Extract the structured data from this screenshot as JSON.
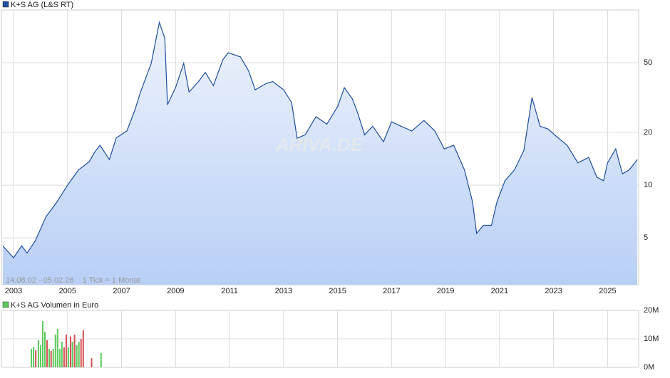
{
  "chart_data": [
    {
      "type": "line",
      "legend": "K+S AG (L&S RT)",
      "note": "14.08.02 - 05.02.26    1 Tick = 1 Monat",
      "watermark": "ARIVA.DE",
      "log_scale": true,
      "grid": true,
      "color": "#1f4e9c",
      "xlim": [
        2002.55,
        2026.15
      ],
      "xticks": [
        2003,
        2005,
        2007,
        2009,
        2011,
        2013,
        2015,
        2017,
        2019,
        2021,
        2023,
        2025
      ],
      "ylim": [
        2.7,
        100
      ],
      "yticks": [
        5,
        10,
        20,
        50
      ],
      "x": [
        2002.6,
        2003.0,
        2003.3,
        2003.5,
        2003.8,
        2004.2,
        2004.6,
        2005.0,
        2005.4,
        2005.8,
        2006.0,
        2006.2,
        2006.55,
        2006.8,
        2007.2,
        2007.5,
        2007.7,
        2008.1,
        2008.4,
        2008.6,
        2008.7,
        2009.0,
        2009.3,
        2009.5,
        2009.85,
        2010.1,
        2010.4,
        2010.75,
        2010.95,
        2011.4,
        2011.7,
        2011.95,
        2012.35,
        2012.6,
        2013.0,
        2013.3,
        2013.5,
        2013.8,
        2014.2,
        2014.6,
        2015.0,
        2015.25,
        2015.55,
        2015.75,
        2016.0,
        2016.3,
        2016.7,
        2017.0,
        2017.35,
        2017.75,
        2018.2,
        2018.6,
        2018.95,
        2019.3,
        2019.7,
        2020.0,
        2020.15,
        2020.4,
        2020.7,
        2020.9,
        2021.2,
        2021.55,
        2021.9,
        2022.2,
        2022.5,
        2022.8,
        2023.1,
        2023.5,
        2023.9,
        2024.3,
        2024.6,
        2024.85,
        2025.0,
        2025.3,
        2025.55,
        2025.8,
        2026.1
      ],
      "series": [
        {
          "name": "K+S AG (L&S RT)",
          "color": "#1f4e9c",
          "values": [
            4.5,
            3.85,
            4.5,
            4.1,
            4.8,
            6.6,
            8.0,
            10,
            12.2,
            13.6,
            15.4,
            16.9,
            14,
            18.6,
            20.4,
            27,
            34,
            49.6,
            85,
            69,
            28.8,
            36,
            49.6,
            34,
            39,
            44,
            37,
            52,
            57,
            54,
            45,
            35,
            38,
            39,
            35,
            29.6,
            18.5,
            19.4,
            24.6,
            22.3,
            28,
            36,
            31,
            25.7,
            19.4,
            21.7,
            17.7,
            23,
            21.7,
            20.4,
            23.4,
            20.4,
            16.1,
            16.9,
            12.2,
            8.0,
            5.3,
            5.9,
            5.9,
            8.0,
            10.6,
            12.2,
            15.8,
            31.6,
            21.7,
            20.9,
            19,
            16.9,
            13.4,
            14.4,
            11.1,
            10.6,
            13.4,
            16.1,
            11.6,
            12.2,
            14
          ]
        }
      ]
    },
    {
      "type": "bar",
      "legend": "K+S AG Volumen in Euro",
      "grid": true,
      "color": "#5cc85c",
      "xlim": [
        2002.55,
        2026.15
      ],
      "ylim": [
        0,
        20000000
      ],
      "yticks": [
        {
          "value": 0,
          "label": "0M"
        },
        {
          "value": 10000000,
          "label": "10M"
        },
        {
          "value": 20000000,
          "label": "20M"
        }
      ],
      "x": [
        2003.66,
        2003.74,
        2003.82,
        2003.92,
        2004.0,
        2004.08,
        2004.16,
        2004.24,
        2004.32,
        2004.39,
        2004.47,
        2004.55,
        2004.63,
        2004.71,
        2004.79,
        2004.87,
        2004.95,
        2005.03,
        2005.11,
        2005.18,
        2005.26,
        2005.34,
        2005.42,
        2005.5,
        2005.58,
        2005.89,
        2006.24
      ],
      "values": [
        6500000,
        7200000,
        6000000,
        9500000,
        7800000,
        16200000,
        12500000,
        9500000,
        6500000,
        5800000,
        6500000,
        11500000,
        13500000,
        6500000,
        9000000,
        7000000,
        11500000,
        7000000,
        10800000,
        9000000,
        11500000,
        7800000,
        9000000,
        10000000,
        13000000,
        3200000,
        5000000
      ],
      "colors": [
        "#5cc85c",
        "#5cc85c",
        "#d05050",
        "#5cc85c",
        "#5cc85c",
        "#5cc85c",
        "#5cc85c",
        "#d05050",
        "#5cc85c",
        "#d05050",
        "#5cc85c",
        "#5cc85c",
        "#5cc85c",
        "#5cc85c",
        "#5cc85c",
        "#d05050",
        "#d05050",
        "#5cc85c",
        "#d05050",
        "#5cc85c",
        "#d05050",
        "#5cc85c",
        "#5cc85c",
        "#d05050",
        "#d05050",
        "#d05050",
        "#5cc85c"
      ]
    }
  ]
}
